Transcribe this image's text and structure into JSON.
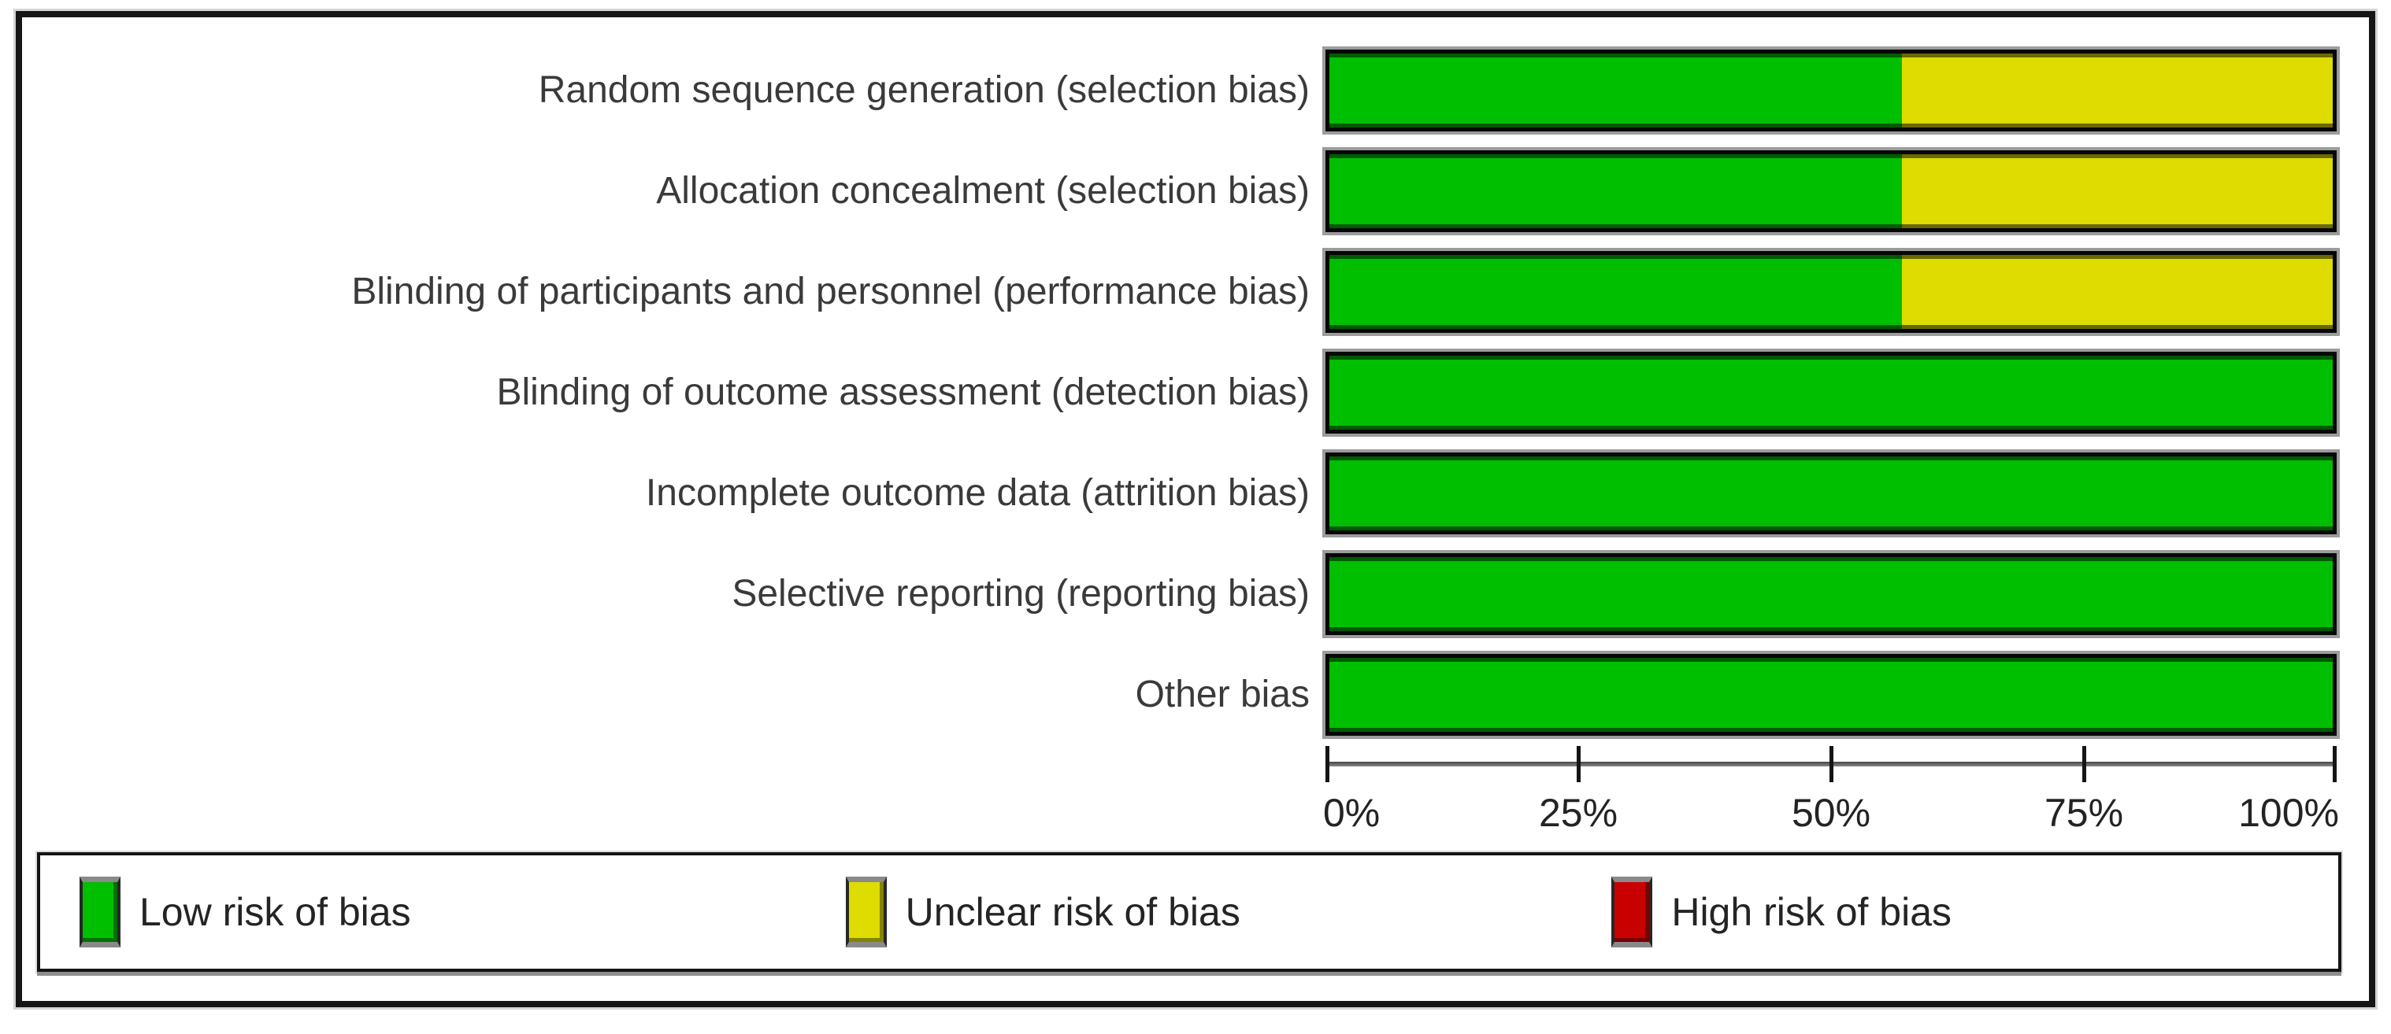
{
  "chart_data": {
    "type": "bar",
    "orientation": "horizontal",
    "stacked": true,
    "title": "",
    "xlabel": "",
    "ylabel": "",
    "grid": false,
    "legend_position": "bottom",
    "categories": [
      "Random sequence generation (selection bias)",
      "Allocation concealment (selection bias)",
      "Blinding of participants and personnel (performance bias)",
      "Blinding of outcome assessment (detection bias)",
      "Incomplete outcome data (attrition bias)",
      "Selective reporting (reporting bias)",
      "Other bias"
    ],
    "series": [
      {
        "name": "Low risk of bias",
        "color": "#00be00",
        "values": [
          57.1,
          57.1,
          57.1,
          100,
          100,
          100,
          100
        ]
      },
      {
        "name": "Unclear risk of bias",
        "color": "#dedc00",
        "values": [
          42.9,
          42.9,
          42.9,
          0,
          0,
          0,
          0
        ]
      },
      {
        "name": "High risk of bias",
        "color": "#c80000",
        "values": [
          0,
          0,
          0,
          0,
          0,
          0,
          0
        ]
      }
    ],
    "x_axis": {
      "min": 0,
      "max": 100,
      "tick_labels": [
        "0%",
        "25%",
        "50%",
        "75%",
        "100%"
      ],
      "tick_values": [
        0,
        25,
        50,
        75,
        100
      ]
    }
  },
  "legend": {
    "items": [
      {
        "label": "Low risk of bias",
        "color": "#00be00"
      },
      {
        "label": "Unclear risk of bias",
        "color": "#dedc00"
      },
      {
        "label": "High risk of bias",
        "color": "#c80000"
      }
    ]
  }
}
